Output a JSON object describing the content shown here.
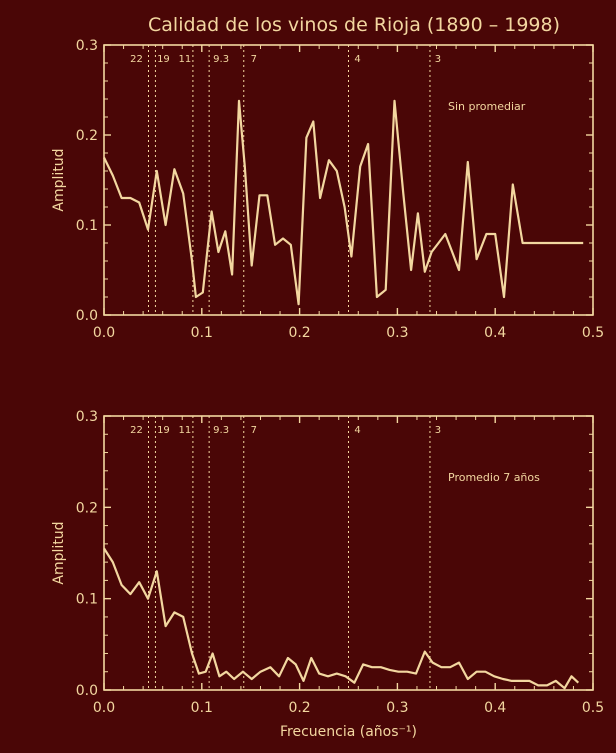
{
  "chart_data": [
    {
      "type": "line",
      "title": "Calidad de los vinos de Rioja (1890 – 1998)",
      "annotation": "Sin promediar",
      "xlabel": "",
      "ylabel": "Amplitud",
      "xlim": [
        0,
        0.5
      ],
      "ylim": [
        0,
        0.3
      ],
      "xticks": [
        "0.0",
        "0.1",
        "0.2",
        "0.3",
        "0.4",
        "0.5"
      ],
      "yticks": [
        "0.0",
        "0.1",
        "0.2",
        "0.3"
      ],
      "period_markers": [
        {
          "label": "22",
          "x": 0.0455
        },
        {
          "label": "19",
          "x": 0.0526
        },
        {
          "label": "11",
          "x": 0.0909
        },
        {
          "label": "9.3",
          "x": 0.1075
        },
        {
          "label": "7",
          "x": 0.1429
        },
        {
          "label": "4",
          "x": 0.25
        },
        {
          "label": "3",
          "x": 0.3333
        }
      ],
      "series": [
        {
          "x": [
            0.0,
            0.009,
            0.018,
            0.027,
            0.036,
            0.045,
            0.054,
            0.063,
            0.072,
            0.081,
            0.09,
            0.094,
            0.101,
            0.11,
            0.117,
            0.124,
            0.131,
            0.138,
            0.144,
            0.151,
            0.159,
            0.167,
            0.175,
            0.183,
            0.191,
            0.199,
            0.207,
            0.214,
            0.221,
            0.23,
            0.238,
            0.246,
            0.253,
            0.262,
            0.27,
            0.279,
            0.288,
            0.297,
            0.306,
            0.314,
            0.321,
            0.328,
            0.335,
            0.342,
            0.349,
            0.356,
            0.363,
            0.372,
            0.381,
            0.391,
            0.4,
            0.409,
            0.418,
            0.428,
            0.436,
            0.444,
            0.452,
            0.46,
            0.468,
            0.476,
            0.484,
            0.49
          ],
          "values": [
            0.175,
            0.155,
            0.13,
            0.13,
            0.125,
            0.095,
            0.16,
            0.1,
            0.162,
            0.135,
            0.06,
            0.02,
            0.025,
            0.115,
            0.07,
            0.093,
            0.045,
            0.238,
            0.165,
            0.055,
            0.133,
            0.133,
            0.078,
            0.085,
            0.078,
            0.012,
            0.197,
            0.215,
            0.13,
            0.172,
            0.16,
            0.12,
            0.065,
            0.165,
            0.19,
            0.02,
            0.028,
            0.238,
            0.135,
            0.05,
            0.113,
            0.048,
            0.07,
            0.08,
            0.09,
            0.07,
            0.05,
            0.17,
            0.062,
            0.09,
            0.09,
            0.02,
            0.145,
            0.08,
            0.08,
            0.08,
            0.08,
            0.08,
            0.08,
            0.08,
            0.08,
            0.08
          ]
        }
      ]
    },
    {
      "type": "line",
      "title": "",
      "annotation": "Promedio 7 años",
      "xlabel": "Frecuencia (años⁻¹)",
      "ylabel": "Amplitud",
      "xlim": [
        0,
        0.5
      ],
      "ylim": [
        0,
        0.3
      ],
      "xticks": [
        "0.0",
        "0.1",
        "0.2",
        "0.3",
        "0.4",
        "0.5"
      ],
      "yticks": [
        "0.0",
        "0.1",
        "0.2",
        "0.3"
      ],
      "period_markers": [
        {
          "label": "22",
          "x": 0.0455
        },
        {
          "label": "19",
          "x": 0.0526
        },
        {
          "label": "11",
          "x": 0.0909
        },
        {
          "label": "9.3",
          "x": 0.1075
        },
        {
          "label": "7",
          "x": 0.1429
        },
        {
          "label": "4",
          "x": 0.25
        },
        {
          "label": "3",
          "x": 0.3333
        }
      ],
      "series": [
        {
          "x": [
            0.0,
            0.009,
            0.018,
            0.027,
            0.036,
            0.045,
            0.054,
            0.063,
            0.072,
            0.081,
            0.09,
            0.097,
            0.104,
            0.111,
            0.118,
            0.125,
            0.133,
            0.142,
            0.151,
            0.16,
            0.17,
            0.179,
            0.188,
            0.196,
            0.204,
            0.212,
            0.22,
            0.229,
            0.238,
            0.247,
            0.256,
            0.265,
            0.274,
            0.283,
            0.292,
            0.301,
            0.31,
            0.319,
            0.328,
            0.336,
            0.345,
            0.354,
            0.363,
            0.372,
            0.381,
            0.39,
            0.399,
            0.408,
            0.417,
            0.426,
            0.435,
            0.444,
            0.453,
            0.462,
            0.471,
            0.478,
            0.485
          ],
          "values": [
            0.155,
            0.14,
            0.115,
            0.105,
            0.118,
            0.1,
            0.13,
            0.07,
            0.085,
            0.08,
            0.04,
            0.018,
            0.02,
            0.04,
            0.015,
            0.02,
            0.012,
            0.02,
            0.012,
            0.02,
            0.025,
            0.015,
            0.035,
            0.028,
            0.01,
            0.035,
            0.018,
            0.015,
            0.018,
            0.015,
            0.008,
            0.028,
            0.025,
            0.025,
            0.022,
            0.02,
            0.02,
            0.018,
            0.042,
            0.03,
            0.025,
            0.025,
            0.03,
            0.012,
            0.02,
            0.02,
            0.015,
            0.012,
            0.01,
            0.01,
            0.01,
            0.005,
            0.005,
            0.01,
            0.002,
            0.015,
            0.008
          ]
        }
      ]
    }
  ]
}
